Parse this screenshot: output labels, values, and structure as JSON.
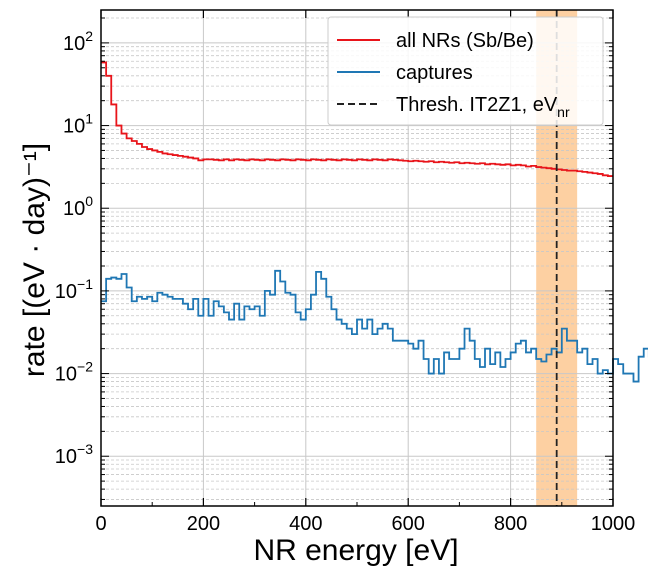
{
  "chart_data": {
    "type": "line",
    "drawstyle": "steps",
    "xlabel": "NR energy [eV]",
    "ylabel": "rate [(eV · day)⁻¹]",
    "xlim": [
      0,
      1000
    ],
    "ylim": [
      0.00025,
      250
    ],
    "yscale": "log",
    "grid": true,
    "legend_position": "top-right",
    "x_ticks": [
      {
        "value": 0,
        "label": "0"
      },
      {
        "value": 200,
        "label": "200"
      },
      {
        "value": 400,
        "label": "400"
      },
      {
        "value": 600,
        "label": "600"
      },
      {
        "value": 800,
        "label": "800"
      },
      {
        "value": 1000,
        "label": "1000"
      }
    ],
    "y_ticks": [
      {
        "value": 0.001,
        "base": "10",
        "exp": "−3"
      },
      {
        "value": 0.01,
        "base": "10",
        "exp": "−2"
      },
      {
        "value": 0.1,
        "base": "10",
        "exp": "−1"
      },
      {
        "value": 1,
        "base": "10",
        "exp": "0"
      },
      {
        "value": 10,
        "base": "10",
        "exp": "1"
      },
      {
        "value": 100,
        "base": "10",
        "exp": "2"
      }
    ],
    "bin_edges_step": 10,
    "series": [
      {
        "name": "all NRs (Sb/Be)",
        "color": "#e8141a",
        "values": [
          58,
          40,
          18,
          10,
          8,
          7,
          6.5,
          6,
          5.5,
          5.2,
          5,
          4.8,
          4.6,
          4.5,
          4.4,
          4.3,
          4.2,
          4.1,
          4.0,
          3.8,
          3.9,
          3.9,
          3.85,
          3.8,
          3.9,
          3.8,
          3.9,
          3.85,
          3.8,
          3.9,
          3.85,
          3.8,
          3.9,
          3.85,
          3.8,
          3.9,
          3.85,
          3.8,
          3.9,
          3.85,
          3.8,
          3.9,
          3.85,
          3.8,
          3.9,
          3.85,
          3.8,
          3.9,
          3.85,
          3.8,
          3.9,
          3.85,
          3.8,
          3.9,
          3.85,
          3.8,
          3.9,
          3.85,
          3.8,
          3.75,
          3.7,
          3.75,
          3.7,
          3.65,
          3.7,
          3.6,
          3.65,
          3.6,
          3.55,
          3.6,
          3.5,
          3.55,
          3.5,
          3.45,
          3.5,
          3.4,
          3.45,
          3.4,
          3.35,
          3.4,
          3.3,
          3.35,
          3.3,
          3.2,
          3.25,
          3.15,
          3.1,
          3.05,
          3.0,
          2.95,
          2.9,
          2.85,
          2.85,
          2.8,
          2.75,
          2.7,
          2.65,
          2.6,
          2.5,
          2.45
        ]
      },
      {
        "name": "captures",
        "color": "#1f77b4",
        "values": [
          0.075,
          0.14,
          0.145,
          0.14,
          0.16,
          0.11,
          0.075,
          0.085,
          0.08,
          0.085,
          0.075,
          0.095,
          0.09,
          0.085,
          0.08,
          0.08,
          0.07,
          0.06,
          0.08,
          0.05,
          0.08,
          0.05,
          0.075,
          0.065,
          0.055,
          0.045,
          0.07,
          0.045,
          0.065,
          0.06,
          0.065,
          0.05,
          0.1,
          0.09,
          0.175,
          0.13,
          0.095,
          0.09,
          0.055,
          0.045,
          0.06,
          0.09,
          0.17,
          0.14,
          0.085,
          0.06,
          0.045,
          0.04,
          0.035,
          0.03,
          0.045,
          0.035,
          0.045,
          0.03,
          0.035,
          0.04,
          0.035,
          0.025,
          0.025,
          0.025,
          0.023,
          0.02,
          0.025,
          0.015,
          0.01,
          0.015,
          0.01,
          0.018,
          0.015,
          0.015,
          0.02,
          0.035,
          0.025,
          0.015,
          0.012,
          0.02,
          0.013,
          0.018,
          0.012,
          0.015,
          0.018,
          0.023,
          0.025,
          0.018,
          0.02,
          0.015,
          0.014,
          0.017,
          0.02,
          0.018,
          0.035,
          0.025,
          0.025,
          0.018,
          0.02,
          0.013,
          0.015,
          0.01,
          0.011,
          0.01,
          0.015,
          0.013,
          0.01,
          0.01,
          0.008,
          0.016,
          0.02,
          0.016,
          0.01,
          0.02,
          0.03,
          0.04,
          0.035,
          0.055,
          0.05,
          0.18,
          0.185,
          0.18,
          0.065,
          0.07,
          0.06,
          0.045,
          0.05,
          0.045,
          0.04,
          0.035,
          0.025,
          0.025,
          0.025,
          0.02,
          0.022,
          0.015,
          0.011,
          0.01,
          0.01,
          0.008,
          0.01,
          0.02,
          0.02,
          0.01,
          0.016,
          0.025,
          0.013,
          0.007,
          0.01,
          0.006,
          0.01,
          0.008,
          0.006,
          0.005
        ]
      },
      {
        "name": "Thresh. IT2Z1, eV",
        "name_sub": "nr",
        "color": "#222222",
        "dashed": true,
        "x": 890
      }
    ],
    "band": {
      "x_from": 850,
      "x_to": 930,
      "color": "#fdd0a2"
    }
  }
}
